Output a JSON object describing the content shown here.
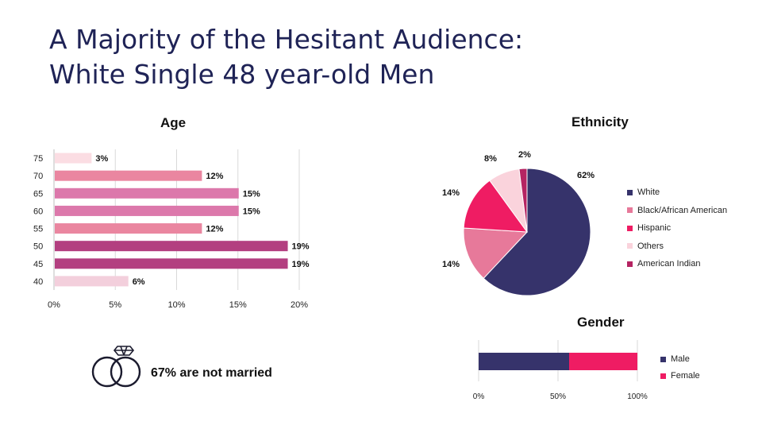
{
  "title_line1": "A Majority of the Hesitant Audience:",
  "title_line2": "White Single 48 year-old Men",
  "married_text": "67% are not married",
  "married_icon": "rings-icon",
  "chart_data": [
    {
      "type": "bar",
      "orientation": "horizontal",
      "title": "Age",
      "categories": [
        "75",
        "70",
        "65",
        "60",
        "55",
        "50",
        "45",
        "40"
      ],
      "values": [
        3,
        12,
        15,
        15,
        12,
        19,
        19,
        6
      ],
      "value_labels": [
        "3%",
        "12%",
        "15%",
        "15%",
        "12%",
        "19%",
        "19%",
        "6%"
      ],
      "colors": [
        "#fbdde3",
        "#ea86a0",
        "#dc78ab",
        "#dc78ab",
        "#ea86a0",
        "#b33f80",
        "#b33f80",
        "#f3cfdc"
      ],
      "xticks": [
        "0%",
        "5%",
        "10%",
        "15%",
        "20%"
      ],
      "xlim": [
        0,
        20
      ],
      "grid": true
    },
    {
      "type": "pie",
      "title": "Ethnicity",
      "labels": [
        "White",
        "Black/African American",
        "Hispanic",
        "Others",
        "American Indian"
      ],
      "values": [
        62,
        14,
        14,
        8,
        2
      ],
      "value_labels": [
        "62%",
        "14%",
        "14%",
        "8%",
        "2%"
      ],
      "colors": [
        "#36336b",
        "#e7799a",
        "#ef1c63",
        "#fad3dc",
        "#b52462"
      ],
      "legend": "right"
    },
    {
      "type": "bar",
      "orientation": "horizontal",
      "stacked": true,
      "title": "Gender",
      "series": [
        {
          "name": "Male",
          "values": [
            57
          ],
          "color": "#36336b"
        },
        {
          "name": "Female",
          "values": [
            43
          ],
          "color": "#ef1c63"
        }
      ],
      "xticks": [
        "0%",
        "50%",
        "100%"
      ],
      "xlim": [
        0,
        100
      ],
      "grid": true,
      "legend": "right"
    }
  ]
}
